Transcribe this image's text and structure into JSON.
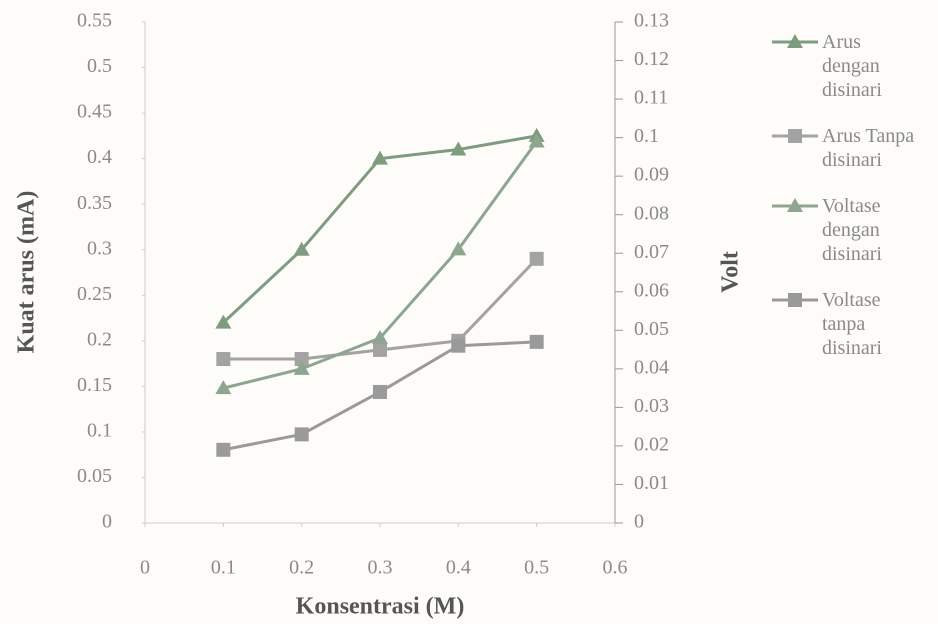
{
  "chart_data": {
    "type": "line",
    "x_label": "Konsentrasi (M)",
    "y_label": "Kuat arus (mA)",
    "y2_label": "Volt",
    "x": [
      0.1,
      0.2,
      0.3,
      0.4,
      0.5
    ],
    "xlim": [
      0,
      0.6
    ],
    "xticks": [
      0,
      0.1,
      0.2,
      0.3,
      0.4,
      0.5,
      0.6
    ],
    "ylim": [
      0,
      0.55
    ],
    "yticks": [
      0,
      0.05,
      0.1,
      0.15,
      0.2,
      0.25,
      0.3,
      0.35,
      0.4,
      0.45,
      0.5,
      0.55
    ],
    "y2lim": [
      0,
      0.13
    ],
    "y2ticks": [
      0,
      0.01,
      0.02,
      0.03,
      0.04,
      0.05,
      0.06,
      0.07,
      0.08,
      0.09,
      0.1,
      0.11,
      0.12,
      0.13
    ],
    "legend": "right",
    "series": [
      {
        "name": "Arus dengan disinari",
        "color": "#7f9c80",
        "marker": "triangle",
        "values": [
          0.22,
          0.3,
          0.4,
          0.41,
          0.425
        ]
      },
      {
        "name": "Arus Tanpa disinari",
        "color": "#a3a3a3",
        "marker": "square",
        "values": [
          0.18,
          0.18,
          0.19,
          0.2,
          0.29
        ]
      },
      {
        "name": "Voltase dengan disinari",
        "color": "#8fa58f",
        "marker": "triangle",
        "axis": "y2",
        "values": [
          0.035,
          0.04,
          0.048,
          0.071,
          0.099
        ]
      },
      {
        "name": "Voltase tanpa disinari",
        "color": "#9a9a9a",
        "marker": "square",
        "axis": "y2",
        "values": [
          0.019,
          0.023,
          0.034,
          0.046,
          0.047
        ]
      }
    ]
  }
}
